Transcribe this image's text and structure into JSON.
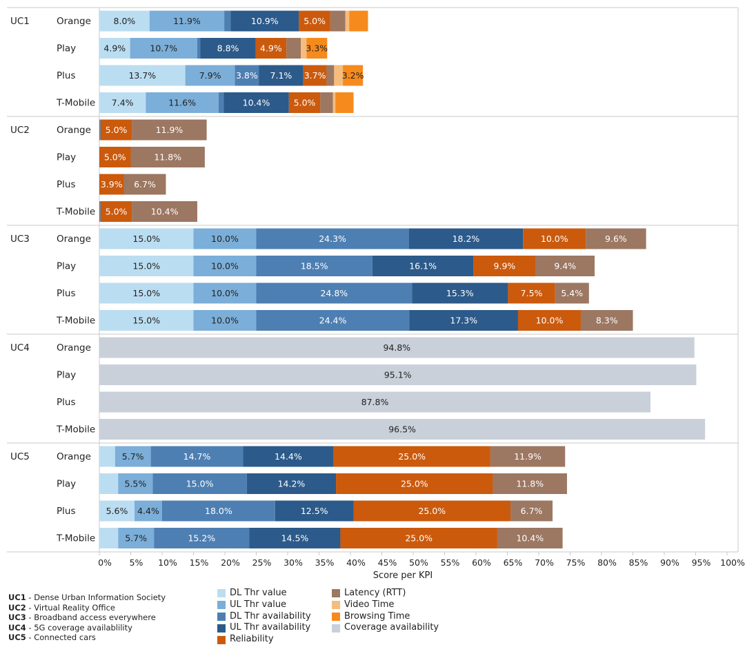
{
  "chart_data": {
    "type": "bar",
    "orientation": "horizontal",
    "stacked": true,
    "xlabel": "Score per KPI",
    "xlim": [
      0,
      100
    ],
    "x_ticks": [
      "0%",
      "5%",
      "10%",
      "15%",
      "20%",
      "25%",
      "30%",
      "35%",
      "40%",
      "45%",
      "50%",
      "55%",
      "60%",
      "65%",
      "70%",
      "75%",
      "80%",
      "85%",
      "90%",
      "95%",
      "100%"
    ],
    "grid": false,
    "series": [
      {
        "name": "DL Thr value",
        "color": "#BBDDF1"
      },
      {
        "name": "UL Thr value",
        "color": "#7BAED8"
      },
      {
        "name": "DL Thr availability",
        "color": "#4E7FB3"
      },
      {
        "name": "UL Thr availability",
        "color": "#2C5A8A"
      },
      {
        "name": "Reliability",
        "color": "#CB5A0D"
      },
      {
        "name": "Latency (RTT)",
        "color": "#9C7762"
      },
      {
        "name": "Video Time",
        "color": "#F6BC7E"
      },
      {
        "name": "Browsing Time",
        "color": "#F78A1C"
      },
      {
        "name": "Coverage availability",
        "color": "#C9D0DA"
      }
    ],
    "groups": [
      {
        "name": "UC1",
        "rows": [
          {
            "operator": "Orange",
            "values": [
              8.0,
              11.9,
              1.0,
              10.9,
              5.0,
              2.4,
              0.6,
              3.0,
              0
            ],
            "labels": [
              "8.0%",
              "11.9%",
              "",
              "10.9%",
              "5.0%",
              "",
              "",
              "",
              ""
            ]
          },
          {
            "operator": "Play",
            "values": [
              4.9,
              10.7,
              0.5,
              8.8,
              4.9,
              2.3,
              0.9,
              3.3,
              0
            ],
            "labels": [
              "4.9%",
              "10.7%",
              "",
              "8.8%",
              "4.9%",
              "",
              "",
              "3.3%",
              ""
            ]
          },
          {
            "operator": "Plus",
            "values": [
              13.7,
              7.9,
              3.8,
              7.1,
              3.7,
              1.2,
              1.4,
              3.2,
              0
            ],
            "labels": [
              "13.7%",
              "7.9%",
              "3.8%",
              "7.1%",
              "3.7%",
              "",
              "",
              "3.2%",
              ""
            ]
          },
          {
            "operator": "T-Mobile",
            "values": [
              7.4,
              11.6,
              0.8,
              10.4,
              5.0,
              2.0,
              0.4,
              2.9,
              0
            ],
            "labels": [
              "7.4%",
              "11.6%",
              "",
              "10.4%",
              "5.0%",
              "",
              "",
              "",
              ""
            ]
          }
        ]
      },
      {
        "name": "UC2",
        "rows": [
          {
            "operator": "Orange",
            "values": [
              0,
              0,
              0.2,
              0,
              5.0,
              11.9,
              0,
              0,
              0
            ],
            "labels": [
              "",
              "",
              "",
              "",
              "5.0%",
              "11.9%",
              "",
              "",
              ""
            ]
          },
          {
            "operator": "Play",
            "values": [
              0,
              0,
              0,
              0,
              5.0,
              11.8,
              0,
              0,
              0
            ],
            "labels": [
              "",
              "",
              "",
              "",
              "5.0%",
              "11.8%",
              "",
              "",
              ""
            ]
          },
          {
            "operator": "Plus",
            "values": [
              0,
              0,
              0,
              0,
              3.9,
              6.7,
              0,
              0,
              0
            ],
            "labels": [
              "",
              "",
              "",
              "",
              "3.9%",
              "6.7%",
              "",
              "",
              ""
            ]
          },
          {
            "operator": "T-Mobile",
            "values": [
              0,
              0,
              0.2,
              0,
              5.0,
              10.4,
              0,
              0,
              0
            ],
            "labels": [
              "",
              "",
              "",
              "",
              "5.0%",
              "10.4%",
              "",
              "",
              ""
            ]
          }
        ]
      },
      {
        "name": "UC3",
        "rows": [
          {
            "operator": "Orange",
            "values": [
              15.0,
              10.0,
              24.3,
              18.2,
              10.0,
              9.6,
              0,
              0,
              0
            ],
            "labels": [
              "15.0%",
              "10.0%",
              "24.3%",
              "18.2%",
              "10.0%",
              "9.6%",
              "",
              "",
              ""
            ]
          },
          {
            "operator": "Play",
            "values": [
              15.0,
              10.0,
              18.5,
              16.1,
              9.9,
              9.4,
              0,
              0,
              0
            ],
            "labels": [
              "15.0%",
              "10.0%",
              "18.5%",
              "16.1%",
              "9.9%",
              "9.4%",
              "",
              "",
              ""
            ]
          },
          {
            "operator": "Plus",
            "values": [
              15.0,
              10.0,
              24.8,
              15.3,
              7.5,
              5.4,
              0,
              0,
              0
            ],
            "labels": [
              "15.0%",
              "10.0%",
              "24.8%",
              "15.3%",
              "7.5%",
              "5.4%",
              "",
              "",
              ""
            ]
          },
          {
            "operator": "T-Mobile",
            "values": [
              15.0,
              10.0,
              24.4,
              17.3,
              10.0,
              8.3,
              0,
              0,
              0
            ],
            "labels": [
              "15.0%",
              "10.0%",
              "24.4%",
              "17.3%",
              "10.0%",
              "8.3%",
              "",
              "",
              ""
            ]
          }
        ]
      },
      {
        "name": "UC4",
        "rows": [
          {
            "operator": "Orange",
            "values": [
              0,
              0,
              0,
              0,
              0,
              0,
              0,
              0,
              94.8
            ],
            "labels": [
              "",
              "",
              "",
              "",
              "",
              "",
              "",
              "",
              "94.8%"
            ]
          },
          {
            "operator": "Play",
            "values": [
              0,
              0,
              0,
              0,
              0,
              0,
              0,
              0,
              95.1
            ],
            "labels": [
              "",
              "",
              "",
              "",
              "",
              "",
              "",
              "",
              "95.1%"
            ]
          },
          {
            "operator": "Plus",
            "values": [
              0,
              0,
              0,
              0,
              0,
              0,
              0,
              0,
              87.8
            ],
            "labels": [
              "",
              "",
              "",
              "",
              "",
              "",
              "",
              "",
              "87.8%"
            ]
          },
          {
            "operator": "T-Mobile",
            "values": [
              0,
              0,
              0,
              0,
              0,
              0,
              0,
              0,
              96.5
            ],
            "labels": [
              "",
              "",
              "",
              "",
              "",
              "",
              "",
              "",
              "96.5%"
            ]
          }
        ]
      },
      {
        "name": "UC5",
        "rows": [
          {
            "operator": "Orange",
            "values": [
              2.5,
              5.7,
              14.7,
              14.4,
              25.0,
              11.9,
              0,
              0,
              0
            ],
            "labels": [
              "",
              "5.7%",
              "14.7%",
              "14.4%",
              "25.0%",
              "11.9%",
              "",
              "",
              ""
            ]
          },
          {
            "operator": "Play",
            "values": [
              3.0,
              5.5,
              15.0,
              14.2,
              25.0,
              11.8,
              0,
              0,
              0
            ],
            "labels": [
              "",
              "5.5%",
              "15.0%",
              "14.2%",
              "25.0%",
              "11.8%",
              "",
              "",
              ""
            ]
          },
          {
            "operator": "Plus",
            "values": [
              5.6,
              4.4,
              18.0,
              12.5,
              25.0,
              6.7,
              0,
              0,
              0
            ],
            "labels": [
              "5.6%",
              "4.4%",
              "18.0%",
              "12.5%",
              "25.0%",
              "6.7%",
              "",
              "",
              ""
            ]
          },
          {
            "operator": "T-Mobile",
            "values": [
              3.0,
              5.7,
              15.2,
              14.5,
              25.0,
              10.4,
              0,
              0,
              0
            ],
            "labels": [
              "",
              "5.7%",
              "15.2%",
              "14.5%",
              "25.0%",
              "10.4%",
              "",
              "",
              ""
            ]
          }
        ]
      }
    ]
  },
  "notes": [
    {
      "code": "UC1",
      "text": " - Dense Urban Information Society"
    },
    {
      "code": "UC2",
      "text": " - Virtual Reality Office"
    },
    {
      "code": "UC3",
      "text": " - Broadband access everywhere"
    },
    {
      "code": "UC4",
      "text": " - 5G coverage availablility"
    },
    {
      "code": "UC5",
      "text": " - Connected cars"
    }
  ],
  "legend": {
    "left": [
      "DL Thr value",
      "UL Thr value",
      "DL Thr availability",
      "UL Thr availability",
      "Reliability"
    ],
    "right": [
      "Latency (RTT)",
      "Video Time",
      "Browsing Time",
      "Coverage availability"
    ]
  }
}
